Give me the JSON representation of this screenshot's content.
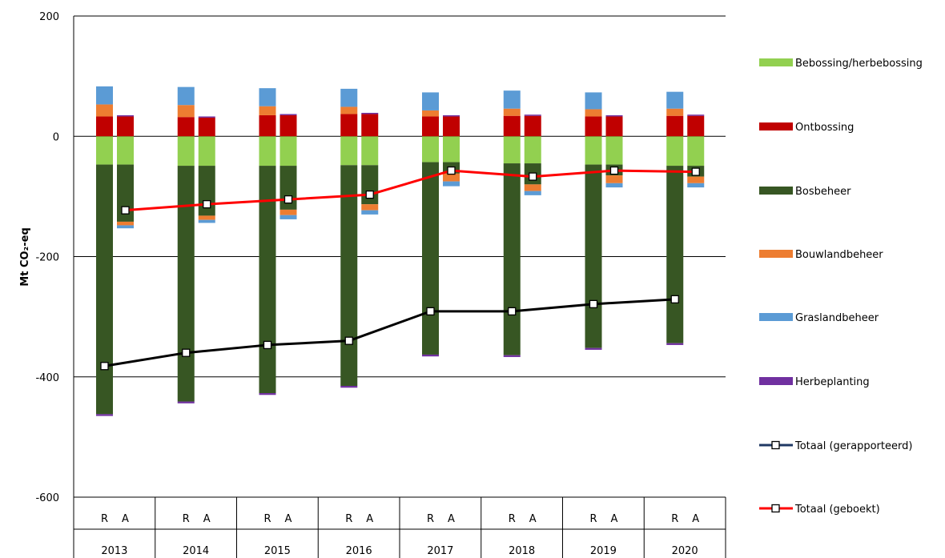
{
  "chart_data": {
    "type": "bar",
    "stacked": true,
    "ylabel": "Mt CO₂-eq",
    "ylim": [
      -600,
      200
    ],
    "yticks": [
      200,
      0,
      -200,
      -400,
      -600
    ],
    "years": [
      "2013",
      "2014",
      "2015",
      "2016",
      "2017",
      "2018",
      "2019",
      "2020"
    ],
    "sub_categories": [
      "R",
      "A"
    ],
    "grid": true,
    "legend_position": "right",
    "colors": {
      "Bebossing/herbebossing": "#92d050",
      "Ontbossing": "#c00000",
      "Bosbeheer": "#375623",
      "Bouwlandbeheer": "#ed7d31",
      "Graslandbeheer": "#5b9bd5",
      "Herbeplanting": "#7030a0",
      "Totaal (gerapporteerd)": "#000000",
      "Totaal (geboekt)": "#ff0000",
      "reported_legend_line": "#1f3864"
    },
    "series": [
      {
        "name": "Bebossing/herbebossing",
        "values": [
          -47,
          -47,
          -49,
          -49,
          -49,
          -49,
          -48,
          -48,
          -43,
          -43,
          -45,
          -45,
          -47,
          -47,
          -49,
          -49
        ]
      },
      {
        "name": "Ontbossing",
        "values": [
          33,
          33,
          32,
          31,
          35,
          35,
          37,
          37,
          33,
          33,
          34,
          34,
          33,
          33,
          34,
          34
        ]
      },
      {
        "name": "Bosbeheer",
        "values": [
          -415,
          -95,
          -392,
          -83,
          -378,
          -73,
          -367,
          -65,
          -320,
          -19,
          -319,
          -35,
          -305,
          -18,
          -295,
          -18
        ]
      },
      {
        "name": "Bouwlandbeheer",
        "values": [
          20,
          -6,
          20,
          -7,
          15,
          -9,
          12,
          -10,
          10,
          -13,
          12,
          -11,
          12,
          -13,
          12,
          -11
        ]
      },
      {
        "name": "Graslandbeheer",
        "values": [
          30,
          -5,
          30,
          -5,
          30,
          -7,
          30,
          -7,
          30,
          -8,
          30,
          -7,
          28,
          -7,
          28,
          -7
        ]
      },
      {
        "name": "Herbeplanting",
        "values": [
          -3,
          2,
          -3,
          2,
          -3,
          2,
          -3,
          2,
          -3,
          2,
          -3,
          2,
          -3,
          2,
          -3,
          2
        ]
      }
    ],
    "lines": [
      {
        "name": "Totaal (gerapporteerd)",
        "x": [
          "2013 R",
          "2014 R",
          "2015 R",
          "2016 R",
          "2017 R",
          "2018 R",
          "2019 R",
          "2020 R"
        ],
        "values": [
          -382,
          -360,
          -347,
          -340,
          -291,
          -291,
          -279,
          -271
        ]
      },
      {
        "name": "Totaal (geboekt)",
        "x": [
          "2013 A",
          "2014 A",
          "2015 A",
          "2016 A",
          "2017 A",
          "2018 A",
          "2019 A",
          "2020 A"
        ],
        "values": [
          -123,
          -113,
          -105,
          -97,
          -57,
          -67,
          -57,
          -59
        ]
      }
    ]
  }
}
